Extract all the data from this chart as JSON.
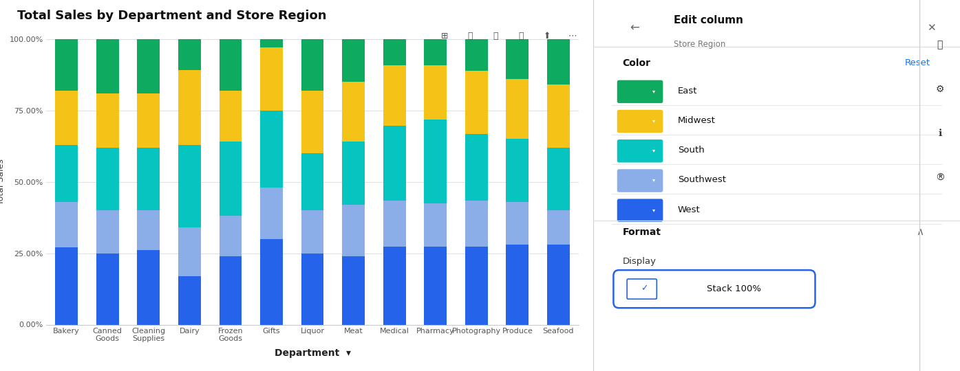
{
  "title": "Total Sales by Department and Store Region",
  "xlabel": "Department",
  "ylabel": "Total Sales",
  "categories": [
    "Bakery",
    "Canned\nGoods",
    "Cleaning\nSupplies",
    "Dairy",
    "Frozen\nGoods",
    "Gifts",
    "Liquor",
    "Meat",
    "Medical",
    "Pharmacy",
    "Photography",
    "Produce",
    "Seafood"
  ],
  "regions": [
    "West",
    "Southwest",
    "South",
    "Midwest",
    "East"
  ],
  "colors": {
    "West": "#2563EB",
    "Southwest": "#8BAEE8",
    "South": "#06C4C0",
    "Midwest": "#F5C218",
    "East": "#0EAA5F"
  },
  "legend_colors": {
    "East": "#0EAA5F",
    "Midwest": "#F5C218",
    "South": "#06C4C0",
    "Southwest": "#8BAEE8",
    "West": "#2563EB"
  },
  "data": {
    "West": [
      27,
      25,
      26,
      17,
      24,
      30,
      25,
      24,
      27,
      27,
      27,
      28,
      28
    ],
    "Southwest": [
      16,
      15,
      14,
      17,
      14,
      18,
      15,
      18,
      16,
      15,
      16,
      15,
      12
    ],
    "South": [
      20,
      22,
      22,
      29,
      26,
      27,
      20,
      22,
      26,
      29,
      23,
      22,
      22
    ],
    "Midwest": [
      19,
      19,
      19,
      26,
      18,
      22,
      22,
      21,
      21,
      19,
      22,
      21,
      22
    ],
    "East": [
      18,
      19,
      19,
      11,
      18,
      3,
      18,
      15,
      9,
      9,
      11,
      14,
      16
    ]
  },
  "ylim": [
    0,
    100
  ],
  "yticks": [
    0,
    25,
    50,
    75,
    100
  ],
  "ytick_labels": [
    "0.00%",
    "25.00%",
    "50.00%",
    "75.00%",
    "100.00%"
  ],
  "background_color": "#ffffff",
  "bar_width": 0.55,
  "title_fontsize": 13,
  "axis_label_fontsize": 9,
  "tick_fontsize": 8,
  "legend_fontsize": 9
}
